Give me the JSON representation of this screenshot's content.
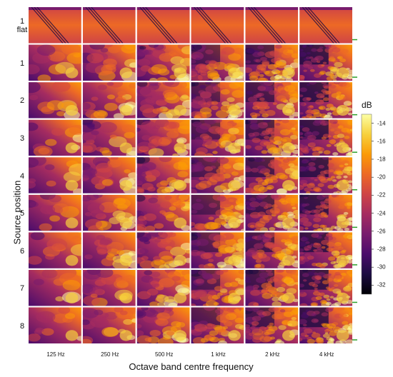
{
  "chart_data": {
    "type": "heatmap",
    "title": "",
    "xlabel": "Octave band centre frequency",
    "ylabel": "Source position",
    "columns": [
      "125 Hz",
      "250 Hz",
      "500 Hz",
      "1 kHz",
      "2 kHz",
      "4 kHz"
    ],
    "rows": [
      {
        "line1": "1",
        "line2": "flat"
      },
      {
        "line1": "1",
        "line2": ""
      },
      {
        "line1": "2",
        "line2": ""
      },
      {
        "line1": "3",
        "line2": ""
      },
      {
        "line1": "4",
        "line2": ""
      },
      {
        "line1": "5",
        "line2": ""
      },
      {
        "line1": "6",
        "line2": ""
      },
      {
        "line1": "7",
        "line2": ""
      },
      {
        "line1": "8",
        "line2": ""
      }
    ],
    "colorbar": {
      "label": "dB",
      "range": [
        -33,
        -13
      ],
      "ticks": [
        -14,
        -16,
        -18,
        -20,
        -22,
        -24,
        -26,
        -28,
        -30,
        -32
      ],
      "colors": [
        "#000004",
        "#1b0c41",
        "#4a0c6b",
        "#781c6d",
        "#a52c60",
        "#cf4446",
        "#ed6925",
        "#fb9b06",
        "#f7d13d",
        "#fcffa4"
      ]
    }
  }
}
